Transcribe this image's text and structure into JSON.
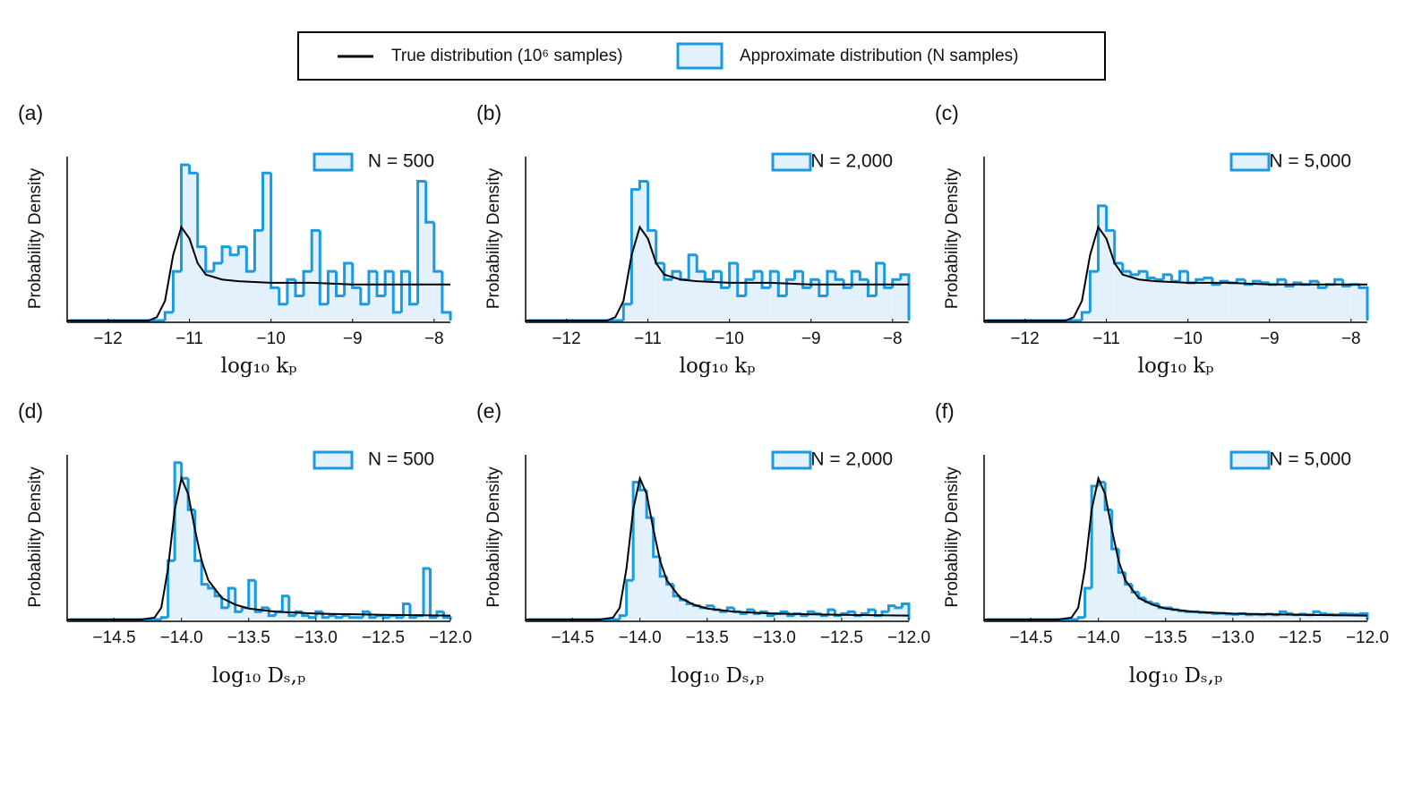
{
  "legend": {
    "items": [
      {
        "label": "True distribution (10⁶ samples)",
        "color": "#000000"
      },
      {
        "label": "Approximate distribution (N samples)",
        "color": "#1a9ae0"
      }
    ]
  },
  "chart_data": [
    {
      "type": "histogram",
      "label": "(a)",
      "ylabel": "Probability Density",
      "xlabel": "log₁₀ kₚ",
      "xlim": [
        -12.5,
        -7.8
      ],
      "xticks": [
        {
          "value": -12,
          "label": "−12"
        },
        {
          "value": -11,
          "label": "−11"
        },
        {
          "value": -10,
          "label": "−10"
        },
        {
          "value": -9,
          "label": "−9"
        },
        {
          "value": -8,
          "label": "−8"
        }
      ],
      "ylim": [
        0,
        1
      ],
      "bins": [
        -11.4,
        -11.3,
        -11.2,
        -11.1,
        -11.0,
        -10.9,
        -10.8,
        -10.7,
        -10.6,
        -10.5,
        -10.4,
        -10.3,
        -10.2,
        -10.1,
        -10.0,
        -9.9,
        -9.8,
        -9.7,
        -9.6,
        -9.5,
        -9.4,
        -9.3,
        -9.2,
        -9.1,
        -9.0,
        -8.9,
        -8.8,
        -8.7,
        -8.6,
        -8.5,
        -8.4,
        -8.3,
        -8.2,
        -8.1,
        -8.0,
        -7.9,
        -7.8
      ],
      "series": [
        {
          "name": "N = 500",
          "color": "#1a9ae0",
          "fill": "#e2f1fb",
          "values": [
            0,
            0.05,
            0.3,
            0.95,
            0.9,
            0.45,
            0.3,
            0.35,
            0.45,
            0.4,
            0.45,
            0.3,
            0.55,
            0.9,
            0.2,
            0.1,
            0.25,
            0.15,
            0.3,
            0.55,
            0.1,
            0.3,
            0.15,
            0.35,
            0.2,
            0.1,
            0.3,
            0.15,
            0.3,
            0.05,
            0.3,
            0.1,
            0.85,
            0.6,
            0.3,
            0.05
          ]
        }
      ],
      "line": {
        "color": "#000000",
        "x": [
          -12.5,
          -11.5,
          -11.4,
          -11.3,
          -11.2,
          -11.1,
          -11.0,
          -10.9,
          -10.8,
          -10.6,
          -10.4,
          -10.0,
          -9.5,
          -9.0,
          -8.5,
          -7.8
        ],
        "values": [
          0,
          0,
          0.02,
          0.12,
          0.4,
          0.57,
          0.5,
          0.35,
          0.28,
          0.25,
          0.24,
          0.23,
          0.23,
          0.22,
          0.22,
          0.22
        ]
      }
    },
    {
      "type": "histogram",
      "label": "(b)",
      "ylabel": "Probability Density",
      "xlabel": "log₁₀ kₚ",
      "xlim": [
        -12.5,
        -7.8
      ],
      "xticks": [
        {
          "value": -12,
          "label": "−12"
        },
        {
          "value": -11,
          "label": "−11"
        },
        {
          "value": -10,
          "label": "−10"
        },
        {
          "value": -9,
          "label": "−9"
        },
        {
          "value": -8,
          "label": "−8"
        }
      ],
      "ylim": [
        0,
        1
      ],
      "bins": [
        -11.4,
        -11.3,
        -11.2,
        -11.1,
        -11.0,
        -10.9,
        -10.8,
        -10.7,
        -10.6,
        -10.5,
        -10.4,
        -10.3,
        -10.2,
        -10.1,
        -10.0,
        -9.9,
        -9.8,
        -9.7,
        -9.6,
        -9.5,
        -9.4,
        -9.3,
        -9.2,
        -9.1,
        -9.0,
        -8.9,
        -8.8,
        -8.7,
        -8.6,
        -8.5,
        -8.4,
        -8.3,
        -8.2,
        -8.1,
        -8.0,
        -7.9,
        -7.8
      ],
      "series": [
        {
          "name": "N = 2,000",
          "color": "#1a9ae0",
          "fill": "#e2f1fb",
          "values": [
            0,
            0.1,
            0.8,
            0.85,
            0.55,
            0.35,
            0.25,
            0.3,
            0.25,
            0.4,
            0.3,
            0.25,
            0.3,
            0.2,
            0.35,
            0.15,
            0.25,
            0.3,
            0.2,
            0.3,
            0.15,
            0.25,
            0.3,
            0.2,
            0.25,
            0.15,
            0.3,
            0.25,
            0.2,
            0.3,
            0.25,
            0.15,
            0.35,
            0.2,
            0.25,
            0.28
          ]
        }
      ],
      "line": {
        "color": "#000000",
        "x": [
          -12.5,
          -11.5,
          -11.4,
          -11.3,
          -11.2,
          -11.1,
          -11.0,
          -10.9,
          -10.8,
          -10.6,
          -10.4,
          -10.0,
          -9.5,
          -9.0,
          -8.5,
          -7.8
        ],
        "values": [
          0,
          0,
          0.02,
          0.12,
          0.4,
          0.57,
          0.5,
          0.35,
          0.28,
          0.25,
          0.24,
          0.23,
          0.23,
          0.22,
          0.22,
          0.22
        ]
      }
    },
    {
      "type": "histogram",
      "label": "(c)",
      "ylabel": "Probability Density",
      "xlabel": "log₁₀ kₚ",
      "xlim": [
        -12.5,
        -7.8
      ],
      "xticks": [
        {
          "value": -12,
          "label": "−12"
        },
        {
          "value": -11,
          "label": "−11"
        },
        {
          "value": -10,
          "label": "−10"
        },
        {
          "value": -9,
          "label": "−9"
        },
        {
          "value": -8,
          "label": "−8"
        }
      ],
      "ylim": [
        0,
        1
      ],
      "bins": [
        -11.4,
        -11.3,
        -11.2,
        -11.1,
        -11.0,
        -10.9,
        -10.8,
        -10.7,
        -10.6,
        -10.5,
        -10.4,
        -10.3,
        -10.2,
        -10.1,
        -10.0,
        -9.9,
        -9.8,
        -9.7,
        -9.6,
        -9.5,
        -9.4,
        -9.3,
        -9.2,
        -9.1,
        -9.0,
        -8.9,
        -8.8,
        -8.7,
        -8.6,
        -8.5,
        -8.4,
        -8.3,
        -8.2,
        -8.1,
        -8.0,
        -7.9,
        -7.8
      ],
      "series": [
        {
          "name": "N = 5,000",
          "color": "#1a9ae0",
          "fill": "#e2f1fb",
          "values": [
            0,
            0.05,
            0.3,
            0.7,
            0.55,
            0.35,
            0.3,
            0.28,
            0.3,
            0.26,
            0.25,
            0.28,
            0.24,
            0.3,
            0.23,
            0.25,
            0.26,
            0.22,
            0.24,
            0.23,
            0.25,
            0.22,
            0.24,
            0.23,
            0.22,
            0.25,
            0.21,
            0.23,
            0.22,
            0.24,
            0.2,
            0.22,
            0.25,
            0.21,
            0.22,
            0.2
          ]
        }
      ],
      "line": {
        "color": "#000000",
        "x": [
          -12.5,
          -11.5,
          -11.4,
          -11.3,
          -11.2,
          -11.1,
          -11.0,
          -10.9,
          -10.8,
          -10.6,
          -10.4,
          -10.0,
          -9.5,
          -9.0,
          -8.5,
          -7.8
        ],
        "values": [
          0,
          0,
          0.02,
          0.12,
          0.4,
          0.57,
          0.5,
          0.35,
          0.28,
          0.25,
          0.24,
          0.23,
          0.23,
          0.22,
          0.22,
          0.22
        ]
      }
    },
    {
      "type": "histogram",
      "label": "(d)",
      "ylabel": "Probability Density",
      "xlabel": "log₁₀ Dₛ,ₚ",
      "xlim": [
        -14.85,
        -12.0
      ],
      "xticks": [
        {
          "value": -14.5,
          "label": "−14.5"
        },
        {
          "value": -14.0,
          "label": "−14.0"
        },
        {
          "value": -13.5,
          "label": "−13.5"
        },
        {
          "value": -13.0,
          "label": "−13.0"
        },
        {
          "value": -12.5,
          "label": "−12.5"
        },
        {
          "value": -12.0,
          "label": "−12.0"
        }
      ],
      "ylim": [
        0,
        4.2
      ],
      "bins": [
        -14.2,
        -14.15,
        -14.1,
        -14.05,
        -14.0,
        -13.95,
        -13.9,
        -13.85,
        -13.8,
        -13.75,
        -13.7,
        -13.65,
        -13.6,
        -13.55,
        -13.5,
        -13.45,
        -13.4,
        -13.35,
        -13.3,
        -13.25,
        -13.2,
        -13.15,
        -13.1,
        -13.05,
        -13.0,
        -12.95,
        -12.9,
        -12.85,
        -12.8,
        -12.75,
        -12.7,
        -12.65,
        -12.6,
        -12.55,
        -12.5,
        -12.45,
        -12.4,
        -12.35,
        -12.3,
        -12.25,
        -12.2,
        -12.15,
        -12.1,
        -12.05,
        -12.0
      ],
      "series": [
        {
          "name": "N = 500",
          "color": "#1a9ae0",
          "fill": "#e2f1fb",
          "values": [
            0,
            0.05,
            1.5,
            4.0,
            3.6,
            2.8,
            1.5,
            0.9,
            0.8,
            0.6,
            0.3,
            0.8,
            0.2,
            0.3,
            1.0,
            0.2,
            0.3,
            0.1,
            0.2,
            0.6,
            0.1,
            0.2,
            0.1,
            0.05,
            0.2,
            0.05,
            0.1,
            0.05,
            0.1,
            0.05,
            0.05,
            0.2,
            0.05,
            0.1,
            0.05,
            0.1,
            0.05,
            0.4,
            0.05,
            0.1,
            1.3,
            0.05,
            0.2,
            0.05
          ]
        }
      ],
      "line": {
        "color": "#000000",
        "x": [
          -14.85,
          -14.3,
          -14.2,
          -14.15,
          -14.1,
          -14.05,
          -14.0,
          -13.95,
          -13.9,
          -13.85,
          -13.8,
          -13.7,
          -13.6,
          -13.5,
          -13.3,
          -13.0,
          -12.5,
          -12.0
        ],
        "values": [
          0,
          0,
          0.05,
          0.3,
          1.3,
          2.8,
          3.6,
          3.2,
          2.3,
          1.5,
          1.0,
          0.55,
          0.38,
          0.28,
          0.2,
          0.15,
          0.12,
          0.1
        ]
      }
    },
    {
      "type": "histogram",
      "label": "(e)",
      "ylabel": "Probability Density",
      "xlabel": "log₁₀ Dₛ,ₚ",
      "xlim": [
        -14.85,
        -12.0
      ],
      "xticks": [
        {
          "value": -14.5,
          "label": "−14.5"
        },
        {
          "value": -14.0,
          "label": "−14.0"
        },
        {
          "value": -13.5,
          "label": "−13.5"
        },
        {
          "value": -13.0,
          "label": "−13.0"
        },
        {
          "value": -12.5,
          "label": "−12.5"
        },
        {
          "value": -12.0,
          "label": "−12.0"
        }
      ],
      "ylim": [
        0,
        4.2
      ],
      "bins": [
        -14.2,
        -14.15,
        -14.1,
        -14.05,
        -14.0,
        -13.95,
        -13.9,
        -13.85,
        -13.8,
        -13.75,
        -13.7,
        -13.65,
        -13.6,
        -13.55,
        -13.5,
        -13.45,
        -13.4,
        -13.35,
        -13.3,
        -13.25,
        -13.2,
        -13.15,
        -13.1,
        -13.05,
        -13.0,
        -12.95,
        -12.9,
        -12.85,
        -12.8,
        -12.75,
        -12.7,
        -12.65,
        -12.6,
        -12.55,
        -12.5,
        -12.45,
        -12.4,
        -12.35,
        -12.3,
        -12.25,
        -12.2,
        -12.15,
        -12.1,
        -12.05,
        -12.0
      ],
      "series": [
        {
          "name": "N = 2,000",
          "color": "#1a9ae0",
          "fill": "#e2f1fb",
          "values": [
            0,
            0.1,
            1.0,
            3.5,
            3.3,
            2.6,
            1.6,
            1.1,
            0.9,
            0.6,
            0.5,
            0.4,
            0.35,
            0.3,
            0.35,
            0.25,
            0.2,
            0.3,
            0.2,
            0.15,
            0.25,
            0.15,
            0.2,
            0.1,
            0.15,
            0.2,
            0.1,
            0.15,
            0.1,
            0.2,
            0.15,
            0.1,
            0.25,
            0.1,
            0.15,
            0.2,
            0.1,
            0.15,
            0.25,
            0.1,
            0.2,
            0.35,
            0.3,
            0.4
          ]
        }
      ],
      "line": {
        "color": "#000000",
        "x": [
          -14.85,
          -14.3,
          -14.2,
          -14.15,
          -14.1,
          -14.05,
          -14.0,
          -13.95,
          -13.9,
          -13.85,
          -13.8,
          -13.7,
          -13.6,
          -13.5,
          -13.3,
          -13.0,
          -12.5,
          -12.0
        ],
        "values": [
          0,
          0,
          0.05,
          0.3,
          1.3,
          2.8,
          3.6,
          3.2,
          2.3,
          1.5,
          1.0,
          0.55,
          0.38,
          0.28,
          0.2,
          0.15,
          0.12,
          0.1
        ]
      }
    },
    {
      "type": "histogram",
      "label": "(f)",
      "ylabel": "Probability Density",
      "xlabel": "log₁₀ Dₛ,ₚ",
      "xlim": [
        -14.85,
        -12.0
      ],
      "xticks": [
        {
          "value": -14.5,
          "label": "−14.5"
        },
        {
          "value": -14.0,
          "label": "−14.0"
        },
        {
          "value": -13.5,
          "label": "−13.5"
        },
        {
          "value": -13.0,
          "label": "−13.0"
        },
        {
          "value": -12.5,
          "label": "−12.5"
        },
        {
          "value": -12.0,
          "label": "−12.0"
        }
      ],
      "ylim": [
        0,
        4.2
      ],
      "bins": [
        -14.2,
        -14.15,
        -14.1,
        -14.05,
        -14.0,
        -13.95,
        -13.9,
        -13.85,
        -13.8,
        -13.75,
        -13.7,
        -13.65,
        -13.6,
        -13.55,
        -13.5,
        -13.45,
        -13.4,
        -13.35,
        -13.3,
        -13.25,
        -13.2,
        -13.15,
        -13.1,
        -13.05,
        -13.0,
        -12.95,
        -12.9,
        -12.85,
        -12.8,
        -12.75,
        -12.7,
        -12.65,
        -12.6,
        -12.55,
        -12.5,
        -12.45,
        -12.4,
        -12.35,
        -12.3,
        -12.25,
        -12.2,
        -12.15,
        -12.1,
        -12.05,
        -12.0
      ],
      "series": [
        {
          "name": "N = 5,000",
          "color": "#1a9ae0",
          "fill": "#e2f1fb",
          "values": [
            0,
            0.05,
            0.8,
            3.4,
            3.5,
            2.8,
            1.8,
            1.2,
            0.9,
            0.7,
            0.55,
            0.45,
            0.4,
            0.3,
            0.3,
            0.25,
            0.22,
            0.2,
            0.2,
            0.18,
            0.17,
            0.15,
            0.16,
            0.14,
            0.13,
            0.15,
            0.12,
            0.13,
            0.12,
            0.14,
            0.12,
            0.2,
            0.15,
            0.12,
            0.14,
            0.12,
            0.2,
            0.15,
            0.13,
            0.12,
            0.15,
            0.14,
            0.13,
            0.15
          ]
        }
      ],
      "line": {
        "color": "#000000",
        "x": [
          -14.85,
          -14.3,
          -14.2,
          -14.15,
          -14.1,
          -14.05,
          -14.0,
          -13.95,
          -13.9,
          -13.85,
          -13.8,
          -13.7,
          -13.6,
          -13.5,
          -13.3,
          -13.0,
          -12.5,
          -12.0
        ],
        "values": [
          0,
          0,
          0.05,
          0.3,
          1.3,
          2.8,
          3.6,
          3.2,
          2.3,
          1.5,
          1.0,
          0.55,
          0.38,
          0.28,
          0.2,
          0.15,
          0.12,
          0.1
        ]
      }
    }
  ]
}
